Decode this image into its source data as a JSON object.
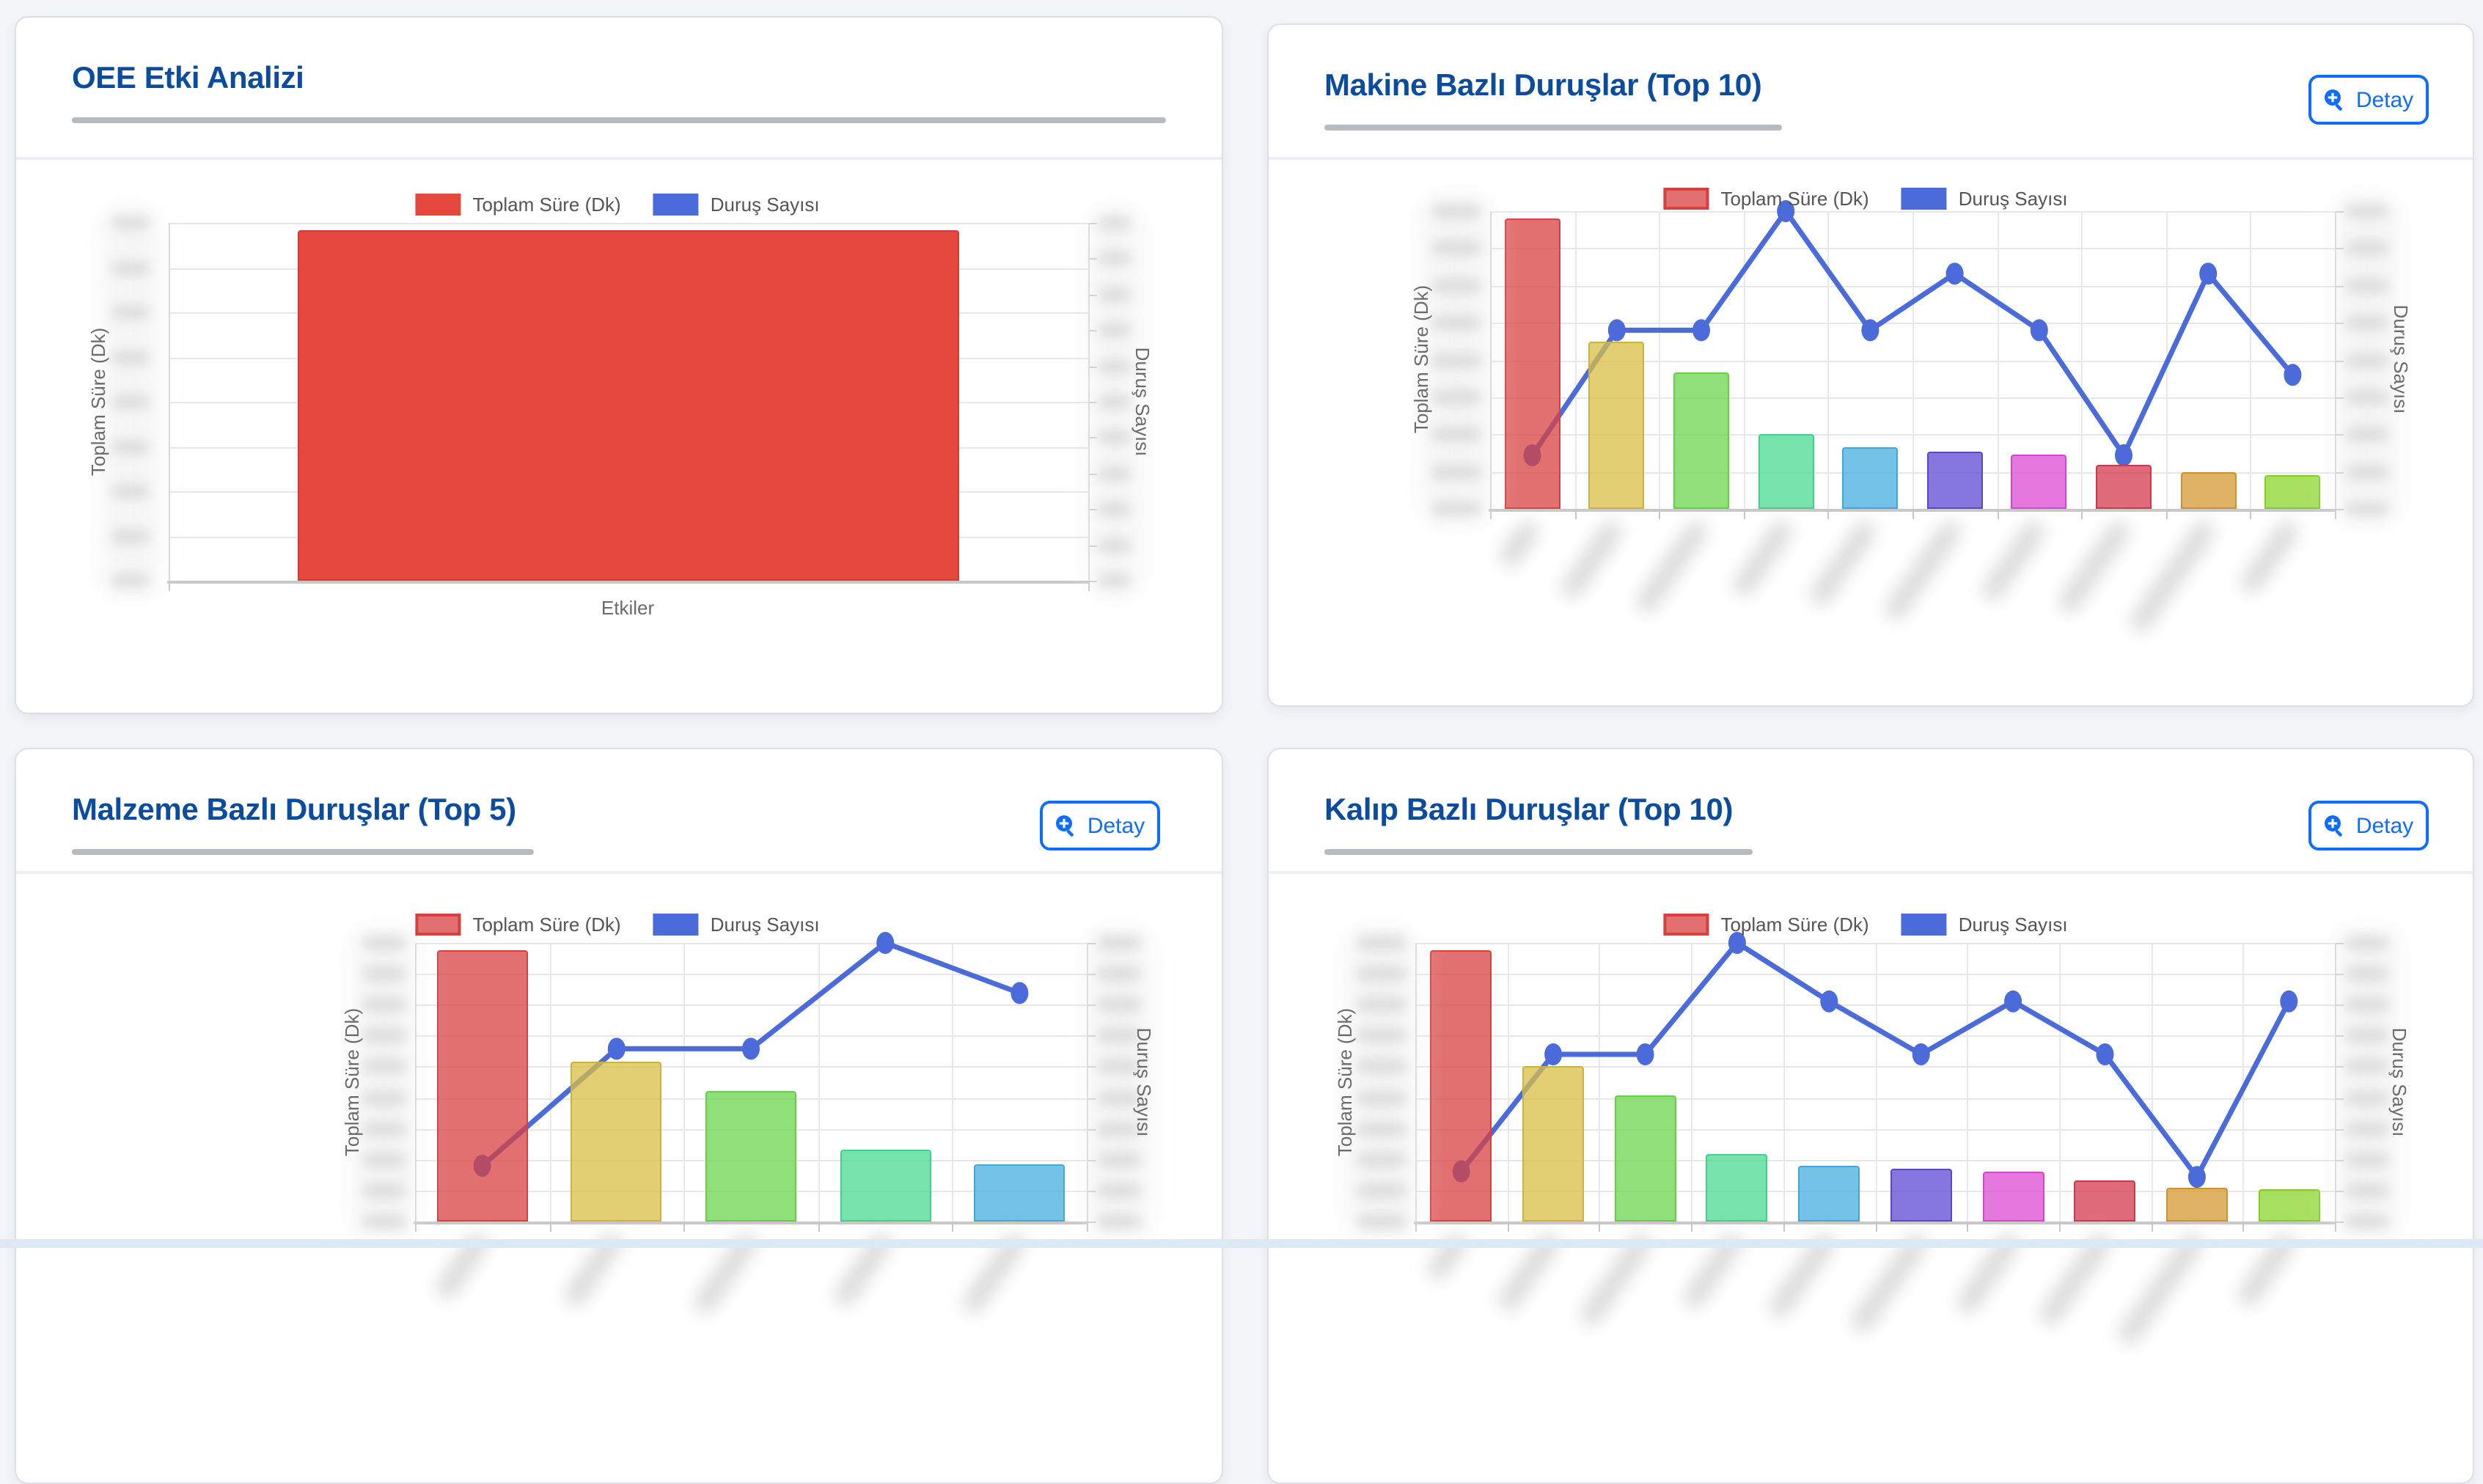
{
  "page": {
    "background": "#f3f5f9",
    "bottom_strip_color": "#dce8f4"
  },
  "colors": {
    "title_blue": "#0b4c9e",
    "button_blue": "#0d6efd",
    "line_blue": "#4a6bd9",
    "bar_red_solid": "#e5493d",
    "grid": "#e7e7e7",
    "axis_text": "#6b6b6b"
  },
  "legend": {
    "bar_label": "Toplam Süre (Dk)",
    "line_label": "Duruş Sayısı"
  },
  "cards": [
    {
      "title": "OEE Etki Analizi",
      "detay_label": null
    },
    {
      "title": "Makine Bazlı Duruşlar (Top 10)",
      "detay_label": "Detay"
    },
    {
      "title": "Malzeme Bazlı Duruşlar (Top 5)",
      "detay_label": "Detay"
    },
    {
      "title": "Kalıp Bazlı Duruşlar (Top 10)",
      "detay_label": "Detay"
    }
  ],
  "chart_data": [
    {
      "id": "oee",
      "type": "bar",
      "title": "OEE Etki Analizi",
      "categories": [
        "Etkiler"
      ],
      "xlabel": "Etkiler",
      "ylabel_left": "Toplam Süre (Dk)",
      "ylabel_right": "Duruş Sayısı",
      "axis_tick_labels": "blurred/redacted in screenshot",
      "grid": true,
      "legend_position": "top",
      "series": [
        {
          "name": "Toplam Süre (Dk)",
          "type": "bar",
          "axis": "left",
          "values_pct_of_plot_height": [
            98
          ],
          "fill": "#e5493d",
          "border": "#d8392e"
        },
        {
          "name": "Duruş Sayısı",
          "type": "line",
          "axis": "right",
          "values_pct_of_plot_height": [],
          "color": "#4a6bd9"
        }
      ]
    },
    {
      "id": "makine",
      "type": "combo-bar-line",
      "title": "Makine Bazlı Duruşlar (Top 10)",
      "category_count": 10,
      "categories": "blurred/redacted in screenshot",
      "ylabel_left": "Toplam Süre (Dk)",
      "ylabel_right": "Duruş Sayısı",
      "axis_tick_labels": "blurred/redacted in screenshot",
      "grid": true,
      "legend_position": "top",
      "series": [
        {
          "name": "Toplam Süre (Dk)",
          "type": "bar",
          "axis": "left",
          "values_pct_of_plot_height": [
            97.5,
            56,
            46,
            25,
            20.5,
            19,
            18,
            15,
            12.5,
            11.5
          ]
        },
        {
          "name": "Duruş Sayısı",
          "type": "line",
          "axis": "right",
          "values_pct_of_plot_height": [
            18,
            60,
            60,
            100,
            60,
            79,
            60,
            18,
            79,
            45
          ],
          "color": "#4a6bd9"
        }
      ]
    },
    {
      "id": "malzeme",
      "type": "combo-bar-line",
      "title": "Malzeme Bazlı Duruşlar (Top 5)",
      "category_count": 5,
      "categories": "blurred/redacted in screenshot",
      "ylabel_left": "Toplam Süre (Dk)",
      "ylabel_right": "Duruş Sayısı",
      "axis_tick_labels": "blurred/redacted in screenshot",
      "grid": true,
      "legend_position": "top",
      "series": [
        {
          "name": "Toplam Süre (Dk)",
          "type": "bar",
          "axis": "left",
          "values_pct_of_plot_height": [
            97.5,
            57.5,
            47,
            26,
            20.5
          ]
        },
        {
          "name": "Duruş Sayısı",
          "type": "line",
          "axis": "right",
          "values_pct_of_plot_height": [
            20,
            62,
            62,
            100,
            82
          ],
          "color": "#4a6bd9"
        }
      ]
    },
    {
      "id": "kalip",
      "type": "combo-bar-line",
      "title": "Kalıp Bazlı Duruşlar (Top 10)",
      "category_count": 10,
      "categories": "blurred/redacted in screenshot",
      "ylabel_left": "Toplam Süre (Dk)",
      "ylabel_right": "Duruş Sayısı",
      "axis_tick_labels": "blurred/redacted in screenshot",
      "grid": true,
      "legend_position": "top",
      "series": [
        {
          "name": "Toplam Süre (Dk)",
          "type": "bar",
          "axis": "left",
          "values_pct_of_plot_height": [
            97.5,
            56,
            45.5,
            24,
            20,
            19,
            18,
            14.8,
            12.3,
            11.5
          ]
        },
        {
          "name": "Duruş Sayısı",
          "type": "line",
          "axis": "right",
          "values_pct_of_plot_height": [
            18,
            60,
            60,
            100,
            79,
            60,
            79,
            60,
            16,
            79
          ],
          "color": "#4a6bd9"
        }
      ]
    }
  ],
  "bar_palette": [
    {
      "fill": "rgba(216,64,64,0.75)",
      "border": "#d84040"
    },
    {
      "fill": "rgba(216,191,70,0.75)",
      "border": "#cdb33e"
    },
    {
      "fill": "rgba(107,214,78,0.75)",
      "border": "#66cc49"
    },
    {
      "fill": "rgba(71,217,143,0.75)",
      "border": "#43cf88"
    },
    {
      "fill": "rgba(70,174,222,0.75)",
      "border": "#42a7d6"
    },
    {
      "fill": "rgba(94,74,212,0.75)",
      "border": "#5a47cc"
    },
    {
      "fill": "rgba(219,75,211,0.75)",
      "border": "#d247ca"
    },
    {
      "fill": "rgba(212,57,77,0.75)",
      "border": "#cc374a"
    },
    {
      "fill": "rgba(212,152,48,0.75)",
      "border": "#cc922e"
    },
    {
      "fill": "rgba(138,212,43,0.75)",
      "border": "#84cc29"
    }
  ]
}
